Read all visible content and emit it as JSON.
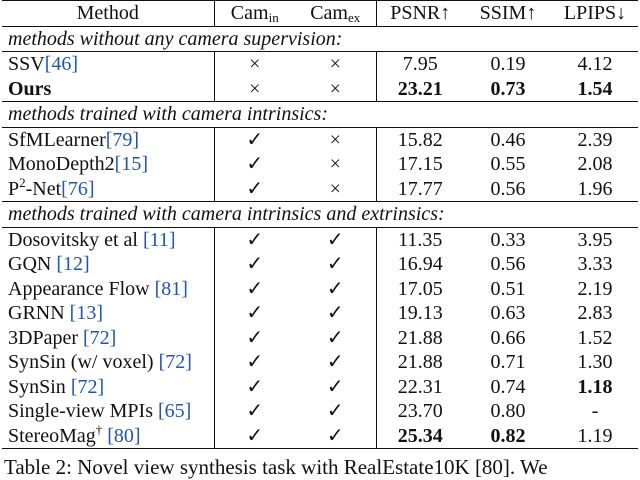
{
  "headers": {
    "method": "Method",
    "cam_in_base": "Cam",
    "cam_in_sub": "in",
    "cam_ex_base": "Cam",
    "cam_ex_sub": "ex",
    "psnr": "PSNR↑",
    "ssim": "SSIM↑",
    "lpips": "LPIPS↓"
  },
  "sections": [
    {
      "title": "methods without any camera supervision:",
      "rows": [
        {
          "name": "SSV",
          "sup": "",
          "ref": "[46]",
          "cam_in": "×",
          "cam_ex": "×",
          "psnr": "7.95",
          "ssim": "0.19",
          "lpips": "4.12",
          "bold_name": false,
          "bold": []
        },
        {
          "name": "Ours",
          "sup": "",
          "ref": "",
          "cam_in": "×",
          "cam_ex": "×",
          "psnr": "23.21",
          "ssim": "0.73",
          "lpips": "1.54",
          "bold_name": true,
          "bold": [
            "psnr",
            "ssim",
            "lpips"
          ]
        }
      ]
    },
    {
      "title": "methods trained with camera intrinsics:",
      "rows": [
        {
          "name": "SfMLearner",
          "sup": "",
          "ref": "[79]",
          "cam_in": "✓",
          "cam_ex": "×",
          "psnr": "15.82",
          "ssim": "0.46",
          "lpips": "2.39",
          "bold_name": false,
          "bold": []
        },
        {
          "name": "MonoDepth2",
          "sup": "",
          "ref": "[15]",
          "cam_in": "✓",
          "cam_ex": "×",
          "psnr": "17.15",
          "ssim": "0.55",
          "lpips": "2.08",
          "bold_name": false,
          "bold": []
        },
        {
          "name": "P",
          "sup": "2",
          "name_suffix": "-Net",
          "ref": "[76]",
          "cam_in": "✓",
          "cam_ex": "×",
          "psnr": "17.77",
          "ssim": "0.56",
          "lpips": "1.96",
          "bold_name": false,
          "bold": []
        }
      ]
    },
    {
      "title": "methods trained with camera intrinsics and extrinsics:",
      "rows": [
        {
          "name": "Dosovitsky et al ",
          "sup": "",
          "ref": "[11]",
          "cam_in": "✓",
          "cam_ex": "✓",
          "psnr": "11.35",
          "ssim": "0.33",
          "lpips": "3.95",
          "bold_name": false,
          "bold": []
        },
        {
          "name": "GQN ",
          "sup": "",
          "ref": "[12]",
          "cam_in": "✓",
          "cam_ex": "✓",
          "psnr": "16.94",
          "ssim": "0.56",
          "lpips": "3.33",
          "bold_name": false,
          "bold": []
        },
        {
          "name": "Appearance Flow ",
          "sup": "",
          "ref": "[81]",
          "cam_in": "✓",
          "cam_ex": "✓",
          "psnr": "17.05",
          "ssim": "0.51",
          "lpips": "2.19",
          "bold_name": false,
          "bold": []
        },
        {
          "name": "GRNN ",
          "sup": "",
          "ref": "[13]",
          "cam_in": "✓",
          "cam_ex": "✓",
          "psnr": "19.13",
          "ssim": "0.63",
          "lpips": "2.83",
          "bold_name": false,
          "bold": []
        },
        {
          "name": "3DPaper ",
          "sup": "",
          "ref": "[72]",
          "cam_in": "✓",
          "cam_ex": "✓",
          "psnr": "21.88",
          "ssim": "0.66",
          "lpips": "1.52",
          "bold_name": false,
          "bold": []
        },
        {
          "name": "SynSin (w/ voxel) ",
          "sup": "",
          "ref": "[72]",
          "cam_in": "✓",
          "cam_ex": "✓",
          "psnr": "21.88",
          "ssim": "0.71",
          "lpips": "1.30",
          "bold_name": false,
          "bold": []
        },
        {
          "name": "SynSin ",
          "sup": "",
          "ref": "[72]",
          "cam_in": "✓",
          "cam_ex": "✓",
          "psnr": "22.31",
          "ssim": "0.74",
          "lpips": "1.18",
          "bold_name": false,
          "bold": [
            "lpips"
          ]
        },
        {
          "name": "Single-view MPIs ",
          "sup": "",
          "ref": "[65]",
          "cam_in": "✓",
          "cam_ex": "✓",
          "psnr": "23.70",
          "ssim": "0.80",
          "lpips": "-",
          "bold_name": false,
          "bold": []
        },
        {
          "name": "StereoMag",
          "sup": "†",
          "name_suffix": " ",
          "ref": "[80]",
          "cam_in": "✓",
          "cam_ex": "✓",
          "psnr": "25.34",
          "ssim": "0.82",
          "lpips": "1.19",
          "bold_name": false,
          "bold": [
            "psnr",
            "ssim"
          ]
        }
      ]
    }
  ],
  "caption": "Table 2: Novel view synthesis task with RealEstate10K [80]. We"
}
